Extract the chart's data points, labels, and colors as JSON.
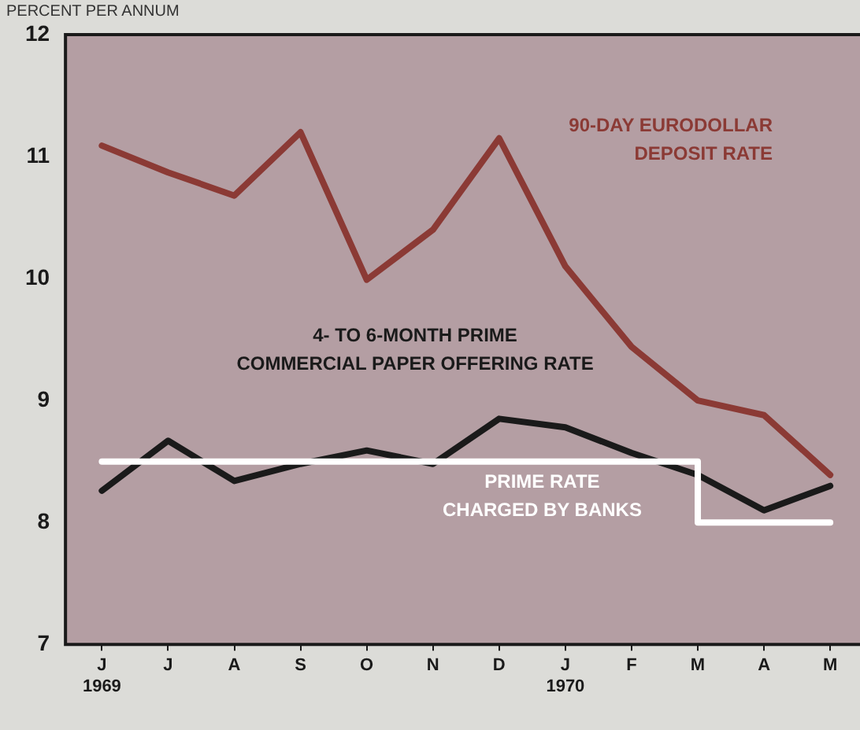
{
  "chart_data": {
    "type": "line",
    "ylabel": "PERCENT PER ANNUM",
    "categories": [
      "J\n1969",
      "J",
      "A",
      "S",
      "O",
      "N",
      "D",
      "J\n1970",
      "F",
      "M",
      "A",
      "M"
    ],
    "ylim": [
      7,
      12
    ],
    "yticks": [
      7,
      8,
      9,
      10,
      11,
      12
    ],
    "series": [
      {
        "name": "90-DAY EURODOLLAR\nDEPOSIT RATE",
        "color": "#8b3a35",
        "values": [
          11.09,
          10.87,
          10.68,
          11.2,
          9.99,
          10.4,
          11.15,
          10.1,
          9.44,
          9.0,
          8.88,
          8.39
        ]
      },
      {
        "name": "4- TO 6-MONTH PRIME\nCOMMERCIAL PAPER OFFERING RATE",
        "color": "#1a1a1a",
        "values": [
          8.26,
          8.67,
          8.34,
          8.48,
          8.59,
          8.48,
          8.85,
          8.78,
          8.57,
          8.39,
          8.1,
          8.3
        ]
      },
      {
        "name": "PRIME RATE\nCHARGED BY BANKS",
        "color": "#ffffff",
        "type": "step",
        "values": [
          8.5,
          8.5,
          8.5,
          8.5,
          8.5,
          8.5,
          8.5,
          8.5,
          8.5,
          8.0,
          8.0,
          8.0
        ]
      }
    ],
    "grid": false,
    "legend": false,
    "marker": "none",
    "line_style": "solid"
  }
}
